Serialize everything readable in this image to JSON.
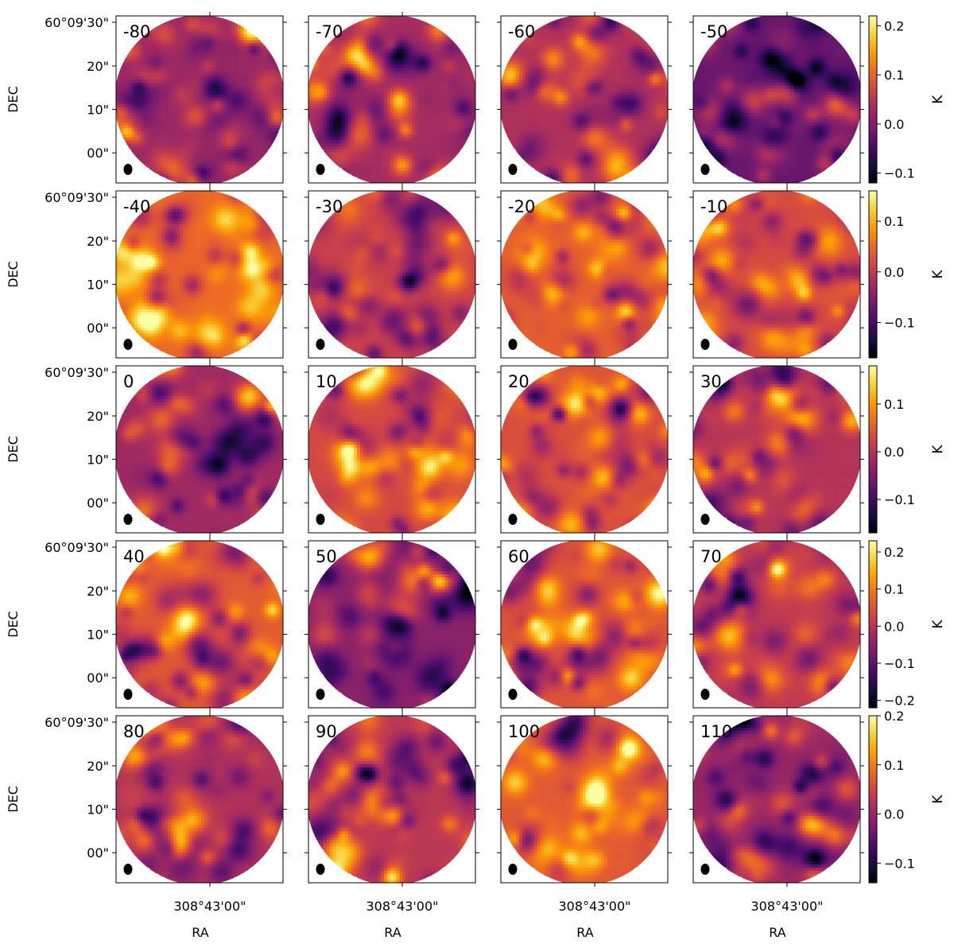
{
  "figure": {
    "panel_labels": [
      [
        "-80",
        "-70",
        "-60",
        "-50"
      ],
      [
        "-40",
        "-30",
        "-20",
        "-10"
      ],
      [
        "0",
        "10",
        "20",
        "30"
      ],
      [
        "40",
        "50",
        "60",
        "70"
      ],
      [
        "80",
        "90",
        "100",
        "110"
      ]
    ],
    "y_axis_label": "DEC",
    "x_axis_label": "RA",
    "colorbar_label": "K",
    "colormap": [
      "#000004",
      "#1b0c41",
      "#4a0c6b",
      "#781c6d",
      "#a52c60",
      "#cf4446",
      "#ed6925",
      "#fb9b06",
      "#f7d13d",
      "#fcffa4"
    ]
  },
  "chart_data": {
    "type": "heatmap",
    "xlabel": "RA",
    "ylabel": "DEC",
    "x_ticks": [
      "308°43'00\""
    ],
    "y_ticks": [
      "60°09'30\"",
      "20\"",
      "10\"",
      "00\""
    ],
    "colorbar_unit": "K",
    "rows": [
      {
        "panels": [
          "-80",
          "-70",
          "-60",
          "-50"
        ],
        "colorbar_range": [
          -0.12,
          0.22
        ],
        "colorbar_ticks": [
          "0.2",
          "0.1",
          "0.0",
          "−0.1"
        ],
        "colorbar_tick_values": [
          0.2,
          0.1,
          0.0,
          -0.1
        ],
        "panel_means": [
          0.02,
          0.03,
          0.04,
          -0.02
        ]
      },
      {
        "panels": [
          "-40",
          "-30",
          "-20",
          "-10"
        ],
        "colorbar_range": [
          -0.17,
          0.16
        ],
        "colorbar_ticks": [
          "0.1",
          "0.0",
          "−0.1"
        ],
        "colorbar_tick_values": [
          0.1,
          0.0,
          -0.1
        ],
        "panel_means": [
          0.05,
          0.01,
          0.04,
          0.02
        ]
      },
      {
        "panels": [
          "0",
          "10",
          "20",
          "30"
        ],
        "colorbar_range": [
          -0.17,
          0.18
        ],
        "colorbar_ticks": [
          "0.1",
          "0.0",
          "−0.1"
        ],
        "colorbar_tick_values": [
          0.1,
          0.0,
          -0.1
        ],
        "panel_means": [
          -0.02,
          0.03,
          0.04,
          0.0
        ]
      },
      {
        "panels": [
          "40",
          "50",
          "60",
          "70"
        ],
        "colorbar_range": [
          -0.22,
          0.23
        ],
        "colorbar_ticks": [
          "0.2",
          "0.1",
          "0.0",
          "−0.1",
          "−0.2"
        ],
        "colorbar_tick_values": [
          0.2,
          0.1,
          0.0,
          -0.1,
          -0.2
        ],
        "panel_means": [
          0.06,
          -0.05,
          0.05,
          0.01
        ]
      },
      {
        "panels": [
          "80",
          "90",
          "100",
          "110"
        ],
        "colorbar_range": [
          -0.14,
          0.2
        ],
        "colorbar_ticks": [
          "0.2",
          "0.1",
          "0.0",
          "−0.1"
        ],
        "colorbar_tick_values": [
          0.2,
          0.1,
          0.0,
          -0.1
        ],
        "panel_means": [
          0.02,
          0.03,
          0.07,
          0.0
        ]
      }
    ]
  }
}
